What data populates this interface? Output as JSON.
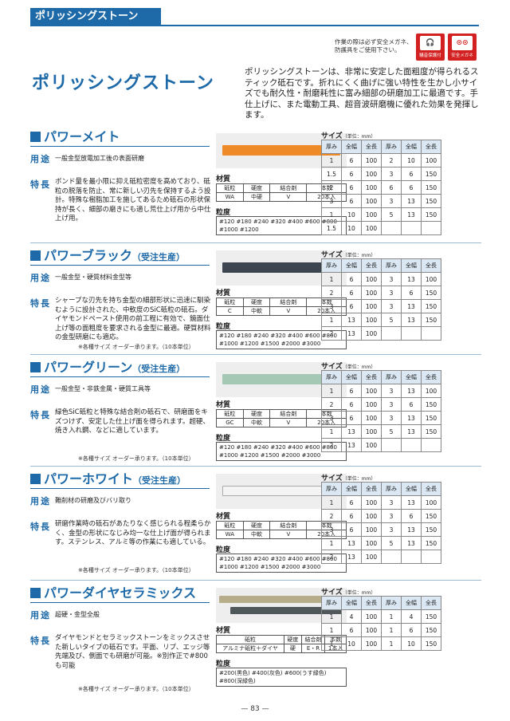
{
  "header": {
    "band_title": "ポリッシングストーン"
  },
  "safety": {
    "note": "作業の際は必ず安全メガネ、防護具をご使用下さい。",
    "icons": [
      {
        "name": "ear-protection-icon",
        "label": "騒音保護付"
      },
      {
        "name": "safety-glasses-icon",
        "label": "安全メガネ"
      }
    ]
  },
  "main": {
    "title": "ポリッシングストーン",
    "intro": "ポリッシングストーンは、非常に安定した面粗度が得られるスティック砥石です。折れにくく曲げに強い特性を生かし小サイズでも耐久性・耐磨耗性に富み細部の研磨加工に最適です。手仕上げに、また電動工具、超音波研磨機に優れた効果を発揮します。"
  },
  "labels": {
    "use": "用途",
    "feature": "特長",
    "material": "材質",
    "grit": "粒度",
    "size": "サイズ",
    "unit": "（単位：mm）",
    "mat_headers": [
      "砥粒",
      "硬度",
      "結合剤",
      "本数"
    ],
    "size_headers": [
      "厚み",
      "全幅",
      "全長",
      "厚み",
      "全幅",
      "全長"
    ]
  },
  "sections": [
    {
      "title": "パワーメイト",
      "note": "",
      "use": "一般金型放電加工後の表面研磨",
      "feature": "ボンド量を最小限に抑え砥粒密度を高めており、砥粒の脱落を防止、常に新しい刃先を保持するよう設計。特殊な樹脂加工を施してあるため砥石の形状保持が長く、細部の磨きにも適し荒仕上げ用から中仕上げ用。",
      "order_note": "",
      "material": [
        "WA",
        "中硬",
        "V",
        "20本入"
      ],
      "grit": "#120 #180 #240 #320 #400 #600 #800 #1000 #1200",
      "sizes": [
        [
          "1",
          "6",
          "100",
          "2",
          "10",
          "100"
        ],
        [
          "1.5",
          "6",
          "100",
          "3",
          "6",
          "150"
        ],
        [
          "2",
          "6",
          "100",
          "6",
          "6",
          "150"
        ],
        [
          "3",
          "6",
          "100",
          "3",
          "13",
          "150"
        ],
        [
          "1",
          "10",
          "100",
          "5",
          "13",
          "150"
        ],
        [
          "1.5",
          "10",
          "100",
          "",
          "",
          ""
        ]
      ]
    },
    {
      "title": "パワーブラック",
      "note": "（受注生産）",
      "use": "一般金型・硬質材料金型等",
      "feature": "シャープな刃先を持ち金型の細部形状に迅速に馴染むように設計された、中軟度のSiC砥粒の砥石。ダイヤモンドペースト使用の前工程に有効で、鏡面仕上げ等の面粗度を要求される金型に最適。硬質材料の金型研磨にも適応。",
      "order_note": "※各種サイズ オーダー承ります。（10本単位）",
      "material": [
        "C",
        "中軟",
        "V",
        "20本入"
      ],
      "grit": "#120 #180 #240 #320 #400 #600 #800 #1000 #1200 #1500 #2000 #3000",
      "sizes": [
        [
          "1",
          "6",
          "100",
          "3",
          "13",
          "100"
        ],
        [
          "2",
          "6",
          "100",
          "3",
          "6",
          "150"
        ],
        [
          "3",
          "6",
          "100",
          "3",
          "13",
          "150"
        ],
        [
          "1",
          "13",
          "100",
          "5",
          "13",
          "150"
        ],
        [
          "2",
          "13",
          "100",
          "",
          "",
          ""
        ]
      ]
    },
    {
      "title": "パワーグリーン",
      "note": "（受注生産）",
      "use": "一般金型・非鉄金属・硬質工具等",
      "feature": "緑色SiC砥粒と特殊な結合剤の砥石で、研磨面をキズつけず、安定した仕上げ面を得られます。超硬、焼き入れ鋼、などに適しています。",
      "order_note": "※各種サイズ オーダー承ります。（10本単位）",
      "material": [
        "GC",
        "中軟",
        "V",
        "20本入"
      ],
      "grit": "#120 #180 #240 #320 #400 #600 #800 #1000 #1200 #1500 #2000 #3000",
      "sizes": [
        [
          "1",
          "6",
          "100",
          "3",
          "13",
          "100"
        ],
        [
          "2",
          "6",
          "100",
          "3",
          "6",
          "150"
        ],
        [
          "3",
          "6",
          "100",
          "3",
          "13",
          "150"
        ],
        [
          "1",
          "13",
          "100",
          "5",
          "13",
          "150"
        ],
        [
          "2",
          "13",
          "100",
          "",
          "",
          ""
        ]
      ]
    },
    {
      "title": "パワーホワイト",
      "note": "（受注生産）",
      "use": "難削材の研磨及びバリ取り",
      "feature": "研磨作業時の砥石があたりなく感じられる程柔らかく、金型の形状になじみ均一な仕上げ面が得られます。ステンレス、アルミ等の作業にも適している。",
      "order_note": "※各種サイズ オーダー承ります。（10本単位）",
      "material": [
        "WA",
        "中軟",
        "V",
        "20本入"
      ],
      "grit": "#120 #180 #240 #320 #400 #600 #800 #1000 #1200 #1500 #2000 #3000",
      "sizes": [
        [
          "1",
          "6",
          "100",
          "3",
          "13",
          "100"
        ],
        [
          "2",
          "6",
          "100",
          "3",
          "6",
          "150"
        ],
        [
          "3",
          "6",
          "100",
          "3",
          "13",
          "150"
        ],
        [
          "1",
          "13",
          "100",
          "5",
          "13",
          "150"
        ],
        [
          "2",
          "13",
          "100",
          "",
          "",
          ""
        ]
      ]
    },
    {
      "title": "パワーダイヤセラミックス",
      "note": "",
      "use": "超硬・金型全般",
      "feature": "ダイヤモンドとセラミックストーンをミックスさせた新しいタイプの砥石です。平面、リブ、エッジ等先端及び、側面でも研磨が可能。※別作正で#800も可能",
      "order_note": "※各種サイズ オーダー承ります。（10本単位）",
      "material": [
        "アルミナ砥粒＋ダイヤ",
        "硬",
        "E・R",
        "1本入"
      ],
      "grit": "#200(黒色) #400(灰色) #600(うす緑色) #800(深緑色)",
      "sizes": [
        [
          "1",
          "4",
          "100",
          "1",
          "4",
          "150"
        ],
        [
          "1",
          "6",
          "100",
          "1",
          "6",
          "150"
        ],
        [
          "1",
          "10",
          "100",
          "1",
          "10",
          "150"
        ]
      ]
    }
  ],
  "footer": {
    "page": "— 83 —"
  }
}
